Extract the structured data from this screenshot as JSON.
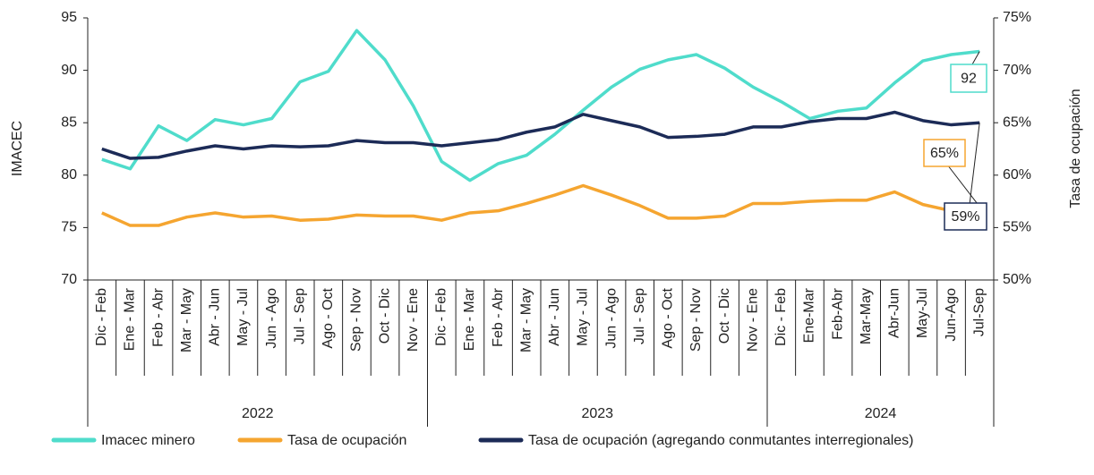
{
  "chart_data": {
    "type": "line",
    "category_groups": [
      {
        "label": "2022",
        "categories": [
          "Dic - Feb",
          "Ene - Mar",
          "Feb - Abr",
          "Mar - May",
          "Abr - Jun",
          "May - Jul",
          "Jun - Ago",
          "Jul - Sep",
          "Ago - Oct",
          "Sep - Nov",
          "Oct - Dic",
          "Nov - Ene"
        ]
      },
      {
        "label": "2023",
        "categories": [
          "Dic - Feb",
          "Ene - Mar",
          "Feb - Abr",
          "Mar - May",
          "Abr - Jun",
          "May - Jul",
          "Jun - Ago",
          "Jul - Sep",
          "Ago - Oct",
          "Sep - Nov",
          "Oct - Dic",
          "Nov - Ene"
        ]
      },
      {
        "label": "2024",
        "categories": [
          "Dic - Feb",
          "Ene-Mar",
          "Feb-Abr",
          "Mar-May",
          "Abr-Jun",
          "May-Jul",
          "Jun-Ago",
          "Jul-Sep"
        ]
      }
    ],
    "ylabel": "IMACEC",
    "y2label": "Tasa de ocupación",
    "ylim": [
      70,
      95
    ],
    "yticks": [
      70,
      75,
      80,
      85,
      90,
      95
    ],
    "y2lim": [
      50,
      75
    ],
    "y2ticks": [
      {
        "value": 50,
        "label": "50%"
      },
      {
        "value": 55,
        "label": "55%"
      },
      {
        "value": 60,
        "label": "60%"
      },
      {
        "value": 65,
        "label": "65%"
      },
      {
        "value": 70,
        "label": "70%"
      },
      {
        "value": 75,
        "label": "75%"
      }
    ],
    "series": [
      {
        "name": "Imacec minero",
        "color": "#4fdccb",
        "values": [
          81.5,
          80.6,
          84.7,
          83.3,
          85.3,
          84.8,
          85.4,
          88.9,
          89.9,
          93.8,
          91.0,
          86.6,
          81.3,
          79.5,
          81.1,
          81.9,
          83.9,
          86.2,
          88.4,
          90.1,
          91.0,
          91.5,
          90.2,
          88.4,
          87.0,
          85.4,
          86.1,
          86.4,
          88.8,
          90.9,
          91.5,
          91.8
        ]
      },
      {
        "name": "Tasa de ocupación",
        "color": "#f5a530",
        "axis": "y2",
        "values": [
          56.4,
          55.2,
          55.2,
          56.0,
          56.4,
          56.0,
          56.1,
          55.7,
          55.8,
          56.2,
          56.1,
          56.1,
          55.7,
          56.4,
          56.6,
          57.3,
          58.1,
          59.0,
          58.1,
          57.1,
          55.9,
          55.9,
          56.1,
          57.3,
          57.3,
          57.5,
          57.6,
          57.6,
          58.4,
          57.2,
          56.6,
          57.0
        ]
      },
      {
        "name": "Tasa de ocupación (agregando conmutantes interregionales)",
        "color": "#1c2b57",
        "axis": "y2",
        "values": [
          62.5,
          61.6,
          61.7,
          62.3,
          62.8,
          62.5,
          62.8,
          62.7,
          62.8,
          63.3,
          63.1,
          63.1,
          62.8,
          63.1,
          63.4,
          64.1,
          64.6,
          65.8,
          65.2,
          64.6,
          63.6,
          63.7,
          63.9,
          64.6,
          64.6,
          65.1,
          65.4,
          65.4,
          66.0,
          65.2,
          64.8,
          65.0
        ]
      }
    ],
    "annotations": [
      "92",
      "65%",
      "59%"
    ],
    "legend": "bottom"
  }
}
